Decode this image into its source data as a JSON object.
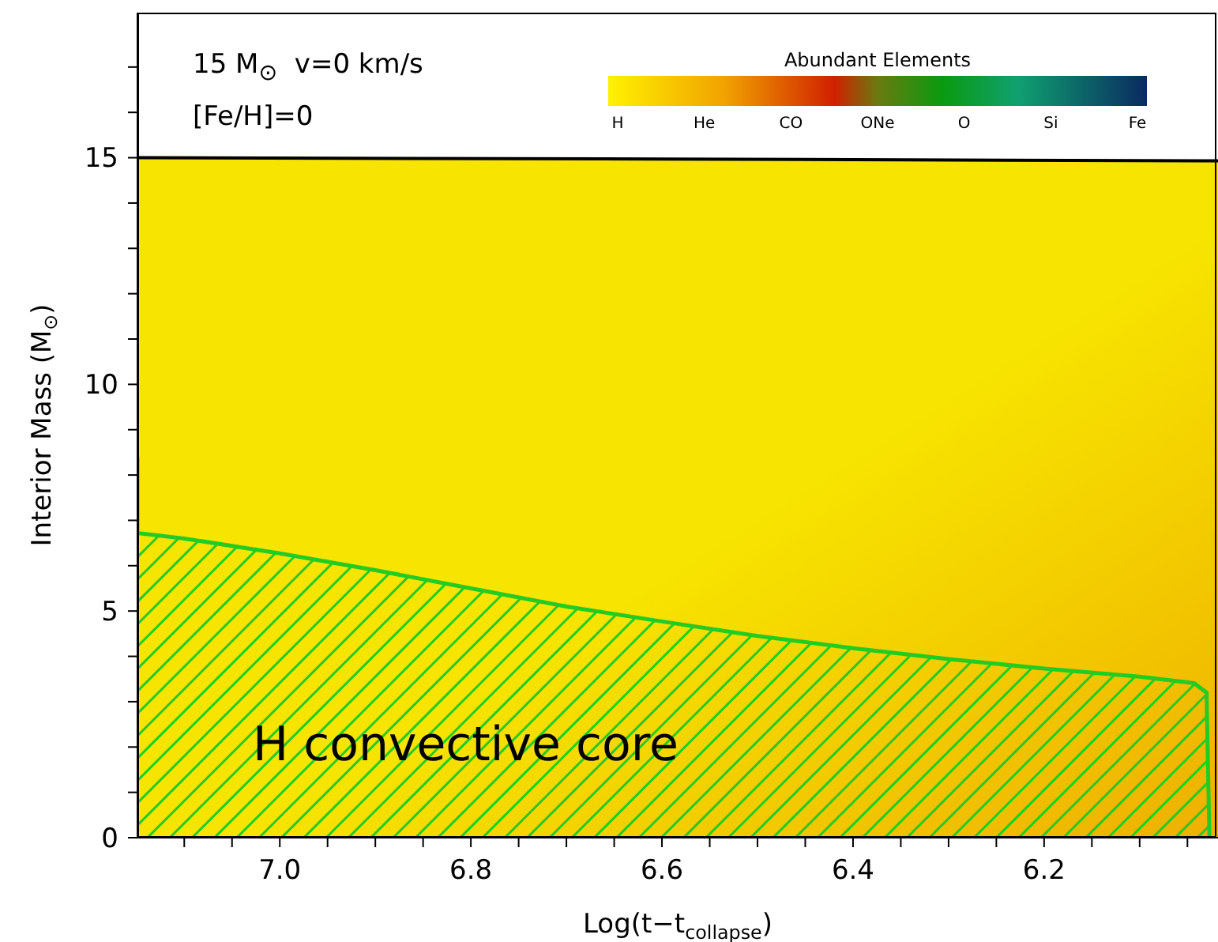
{
  "chart_data": {
    "type": "area",
    "xlabel": "Log(t−t$_{collapse}$)",
    "ylabel": "Interior Mass (M$_{⊙}$)",
    "clabel": "Abundant Elements",
    "cticks": [
      "H",
      "He",
      "CO",
      "ONe",
      "O",
      "Si",
      "Fe"
    ],
    "xlim": [
      7.149,
      6.018
    ],
    "ylim": [
      0,
      18.2
    ],
    "xticks": [
      {
        "value": 7.1,
        "label": null
      },
      {
        "value": 7.05,
        "label": null
      },
      {
        "value": 7,
        "label": "7.0"
      },
      {
        "value": 6.95,
        "label": null
      },
      {
        "value": 6.9,
        "label": null
      },
      {
        "value": 6.85,
        "label": null
      },
      {
        "value": 6.8,
        "label": "6.8"
      },
      {
        "value": 6.75,
        "label": null
      },
      {
        "value": 6.7,
        "label": null
      },
      {
        "value": 6.65,
        "label": null
      },
      {
        "value": 6.6,
        "label": "6.6"
      },
      {
        "value": 6.55,
        "label": null
      },
      {
        "value": 6.5,
        "label": null
      },
      {
        "value": 6.45,
        "label": null
      },
      {
        "value": 6.4,
        "label": "6.4"
      },
      {
        "value": 6.35,
        "label": null
      },
      {
        "value": 6.3,
        "label": null
      },
      {
        "value": 6.25,
        "label": null
      },
      {
        "value": 6.2,
        "label": "6.2"
      },
      {
        "value": 6.15,
        "label": null
      },
      {
        "value": 6.1,
        "label": null
      },
      {
        "value": 6.05,
        "label": null
      }
    ],
    "yticks": [
      0,
      {
        "value": 1,
        "label": null
      },
      {
        "value": 2,
        "label": null
      },
      {
        "value": 3,
        "label": null
      },
      {
        "value": 4,
        "label": null
      },
      5,
      {
        "value": 6,
        "label": null
      },
      {
        "value": 7,
        "label": null
      },
      {
        "value": 8,
        "label": null
      },
      {
        "value": 9,
        "label": null
      },
      10,
      {
        "value": 11,
        "label": null
      },
      {
        "value": 12,
        "label": null
      },
      {
        "value": 13,
        "label": null
      },
      {
        "value": 14,
        "label": null
      },
      15,
      {
        "value": 16,
        "label": null
      },
      {
        "value": 17,
        "label": null
      }
    ],
    "series": [
      {
        "color": "#f7e400",
        "x": [
          7.149,
          6.6,
          6.018
        ],
        "values": [
          15,
          14.97,
          14.93
        ]
      },
      {
        "color": "#22cc22",
        "x": [
          7.149,
          7.149,
          7.1,
          7.0,
          6.9,
          6.8,
          6.7,
          6.6,
          6.5,
          6.4,
          6.3,
          6.2,
          6.1,
          6.043,
          6.03,
          6.027
        ],
        "values": [
          8.4,
          6.72,
          6.6,
          6.27,
          5.9,
          5.5,
          5.1,
          4.77,
          4.45,
          4.18,
          3.94,
          3.73,
          3.55,
          3.41,
          3.2,
          0
        ]
      }
    ],
    "annotations": [
      "15 M$_{⊙}$  v=0 km/s",
      "[Fe/H]=0",
      "H convective core"
    ]
  }
}
